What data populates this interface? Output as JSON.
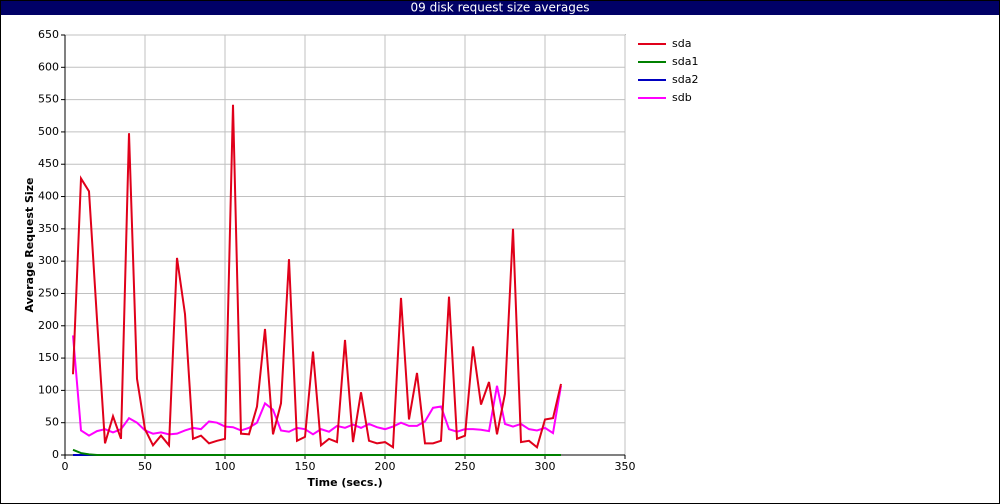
{
  "chart_data": {
    "type": "line",
    "title": "09 disk request size averages",
    "x_label": "Time (secs.)",
    "y_label": "Average Request Size",
    "x": [
      5,
      10,
      15,
      20,
      25,
      30,
      35,
      40,
      45,
      50,
      55,
      60,
      65,
      70,
      75,
      80,
      85,
      90,
      95,
      100,
      105,
      110,
      115,
      120,
      125,
      130,
      135,
      140,
      145,
      150,
      155,
      160,
      165,
      170,
      175,
      180,
      185,
      190,
      195,
      200,
      205,
      210,
      215,
      220,
      225,
      230,
      235,
      240,
      245,
      250,
      255,
      260,
      265,
      270,
      275,
      280,
      285,
      290,
      295,
      300,
      305,
      310
    ],
    "series": [
      {
        "name": "sda",
        "color": "#e0001a",
        "values": [
          125,
          428,
          408,
          210,
          18,
          60,
          25,
          498,
          118,
          40,
          15,
          30,
          15,
          305,
          218,
          25,
          30,
          18,
          22,
          25,
          542,
          33,
          32,
          75,
          195,
          32,
          80,
          303,
          22,
          28,
          160,
          15,
          25,
          20,
          178,
          20,
          97,
          22,
          18,
          20,
          12,
          243,
          55,
          127,
          18,
          18,
          22,
          245,
          25,
          30,
          168,
          78,
          113,
          32,
          95,
          350,
          20,
          22,
          12,
          55,
          57,
          110
        ]
      },
      {
        "name": "sda1",
        "color": "#008000",
        "values": [
          8,
          3,
          1,
          0,
          0,
          0,
          0,
          0,
          0,
          0,
          0,
          0,
          0,
          0,
          0,
          0,
          0,
          0,
          0,
          0,
          0,
          0,
          0,
          0,
          0,
          0,
          0,
          0,
          0,
          0,
          0,
          0,
          0,
          0,
          0,
          0,
          0,
          0,
          0,
          0,
          0,
          0,
          0,
          0,
          0,
          0,
          0,
          0,
          0,
          0,
          0,
          0,
          0,
          0,
          0,
          0,
          0,
          0,
          0,
          0,
          0,
          0
        ]
      },
      {
        "name": "sda2",
        "color": "#0000c0",
        "values": [
          0,
          0,
          0,
          0,
          0,
          0,
          0,
          0,
          0,
          0,
          0,
          0,
          0,
          0,
          0,
          0,
          0,
          0,
          0,
          0,
          0,
          0,
          0,
          0,
          0,
          0,
          0,
          0,
          0,
          0,
          0,
          0,
          0,
          0,
          0,
          0,
          0,
          0,
          0,
          0,
          0,
          0,
          0,
          0,
          0,
          0,
          0,
          0,
          0,
          0,
          0,
          0,
          0,
          0,
          0,
          0,
          0,
          0,
          0,
          0,
          0,
          0
        ]
      },
      {
        "name": "sdb",
        "color": "#ff00ff",
        "values": [
          185,
          38,
          30,
          37,
          40,
          35,
          40,
          57,
          50,
          38,
          33,
          35,
          32,
          33,
          38,
          42,
          40,
          52,
          50,
          44,
          43,
          38,
          42,
          50,
          80,
          70,
          38,
          36,
          42,
          40,
          32,
          40,
          36,
          45,
          42,
          47,
          42,
          48,
          43,
          40,
          44,
          50,
          45,
          45,
          52,
          73,
          75,
          40,
          36,
          40,
          40,
          39,
          37,
          107,
          48,
          44,
          48,
          40,
          38,
          42,
          34,
          107
        ]
      }
    ],
    "xlim": [
      0,
      350
    ],
    "xticks": [
      0,
      50,
      100,
      150,
      200,
      250,
      300,
      350
    ],
    "ylim": [
      0,
      650
    ],
    "yticks": [
      0,
      50,
      100,
      150,
      200,
      250,
      300,
      350,
      400,
      450,
      500,
      550,
      600,
      650
    ],
    "grid": true,
    "legend": "right"
  }
}
